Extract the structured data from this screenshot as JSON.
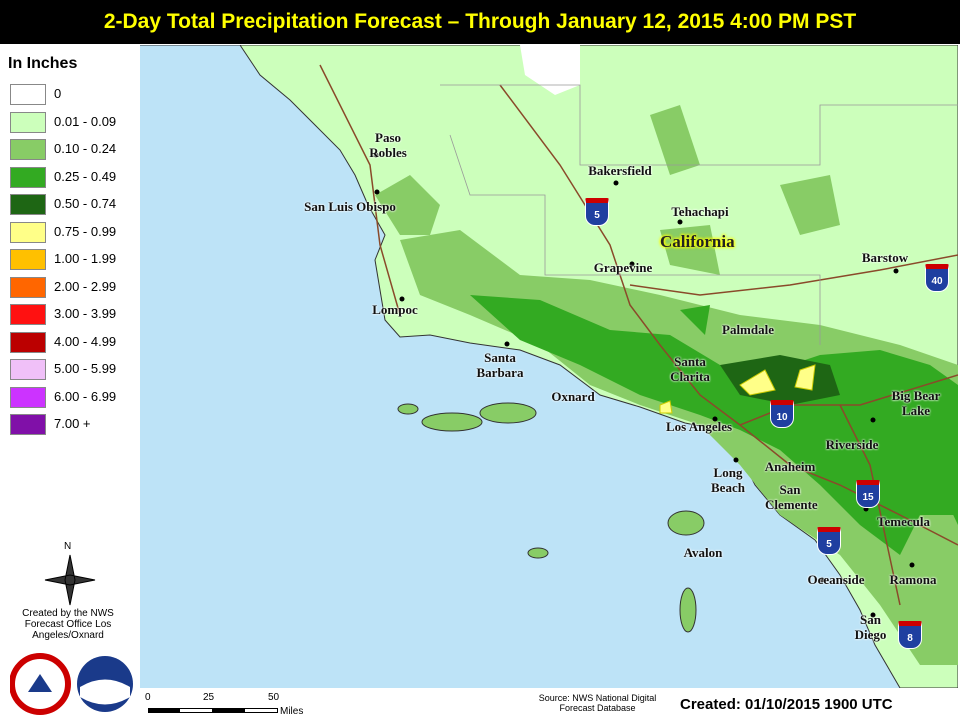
{
  "header": {
    "title": "2-Day Total Precipitation Forecast – Through January 12, 2015 4:00 PM PST"
  },
  "legend": {
    "title": "In Inches",
    "items": [
      {
        "label": "0",
        "color": "#ffffff"
      },
      {
        "label": "0.01 - 0.09",
        "color": "#ccffbb"
      },
      {
        "label": "0.10 - 0.24",
        "color": "#88cc66"
      },
      {
        "label": "0.25 - 0.49",
        "color": "#33aa22"
      },
      {
        "label": "0.50 - 0.74",
        "color": "#1e6614"
      },
      {
        "label": "0.75 - 0.99",
        "color": "#ffff88"
      },
      {
        "label": "1.00 - 1.99",
        "color": "#ffc000"
      },
      {
        "label": "2.00 - 2.99",
        "color": "#ff6600"
      },
      {
        "label": "3.00 - 3.99",
        "color": "#ff1111"
      },
      {
        "label": "4.00 - 4.99",
        "color": "#bb0000"
      },
      {
        "label": "5.00 - 5.99",
        "color": "#f0c0f8"
      },
      {
        "label": "6.00 - 6.99",
        "color": "#cc33ff"
      },
      {
        "label": "7.00 +",
        "color": "#8010a8"
      }
    ]
  },
  "map": {
    "places": [
      "Paso Robles",
      "San Luis Obispo",
      "Bakersfield",
      "Tehachapi",
      "Grapevine",
      "Barstow",
      "Lompoc",
      "Palmdale",
      "Santa Barbara",
      "Santa Clarita",
      "Oxnard",
      "Big Bear Lake",
      "Los Angeles",
      "Riverside",
      "Anaheim",
      "Long Beach",
      "San Clemente",
      "Temecula",
      "Avalon",
      "Oceanside",
      "Ramona",
      "San Diego"
    ],
    "state": "California",
    "interstates": [
      "5",
      "40",
      "10",
      "15",
      "5",
      "8"
    ]
  },
  "north": "N",
  "credit": "Created by the NWS Forecast Office Los Angeles/Oxnard",
  "scale": {
    "ticks": [
      "0",
      "25",
      "50"
    ],
    "unit": "Miles"
  },
  "source": "Source: NWS National Digital Forecast Database",
  "created": "Created: 01/10/2015 1900 UTC"
}
